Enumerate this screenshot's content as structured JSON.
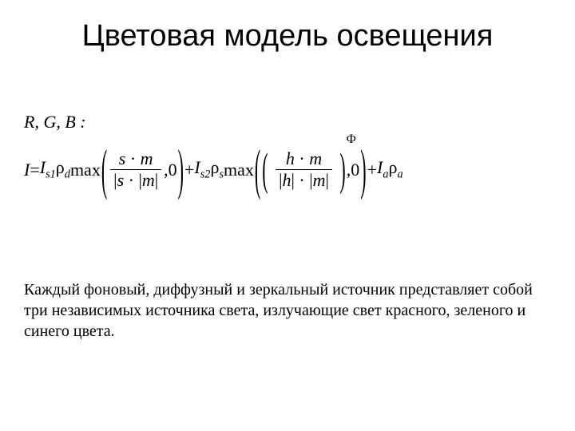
{
  "colors": {
    "background": "#ffffff",
    "text": "#000000",
    "title": "#000000"
  },
  "typography": {
    "title_font": "Arial",
    "title_size_pt": 28,
    "body_font": "Times New Roman",
    "body_size_pt": 15,
    "equation_size_pt": 16
  },
  "title": "Цветовая модель освещения",
  "rgb_label": "R, G, B :",
  "equation": {
    "I": "I",
    "eq": " = ",
    "I_s1": "I",
    "s1_sub": "s1",
    "rho": "ρ",
    "d_sub": "d",
    "max1": " max",
    "frac1_num_s": "s",
    "dot": " · ",
    "frac1_num_m": "m",
    "frac1_den_s": "s",
    "frac1_den_m": "m",
    "comma0": ",0",
    "plus": " + ",
    "I_s2": "I",
    "s2_sub": "s2",
    "s_sub": "s",
    "max2": " max",
    "frac2_num_h": "h",
    "frac2_num_m": "m",
    "frac2_den_h": "h",
    "frac2_den_m": "m",
    "Phi": "Ф",
    "I_a": "I",
    "a_sub": "a",
    "a_sub2": "a"
  },
  "body": "Каждый фоновый, диффузный и зеркальный источник представляет собой три независимых источника света, излучающие свет красного, зеленого и синего цвета."
}
